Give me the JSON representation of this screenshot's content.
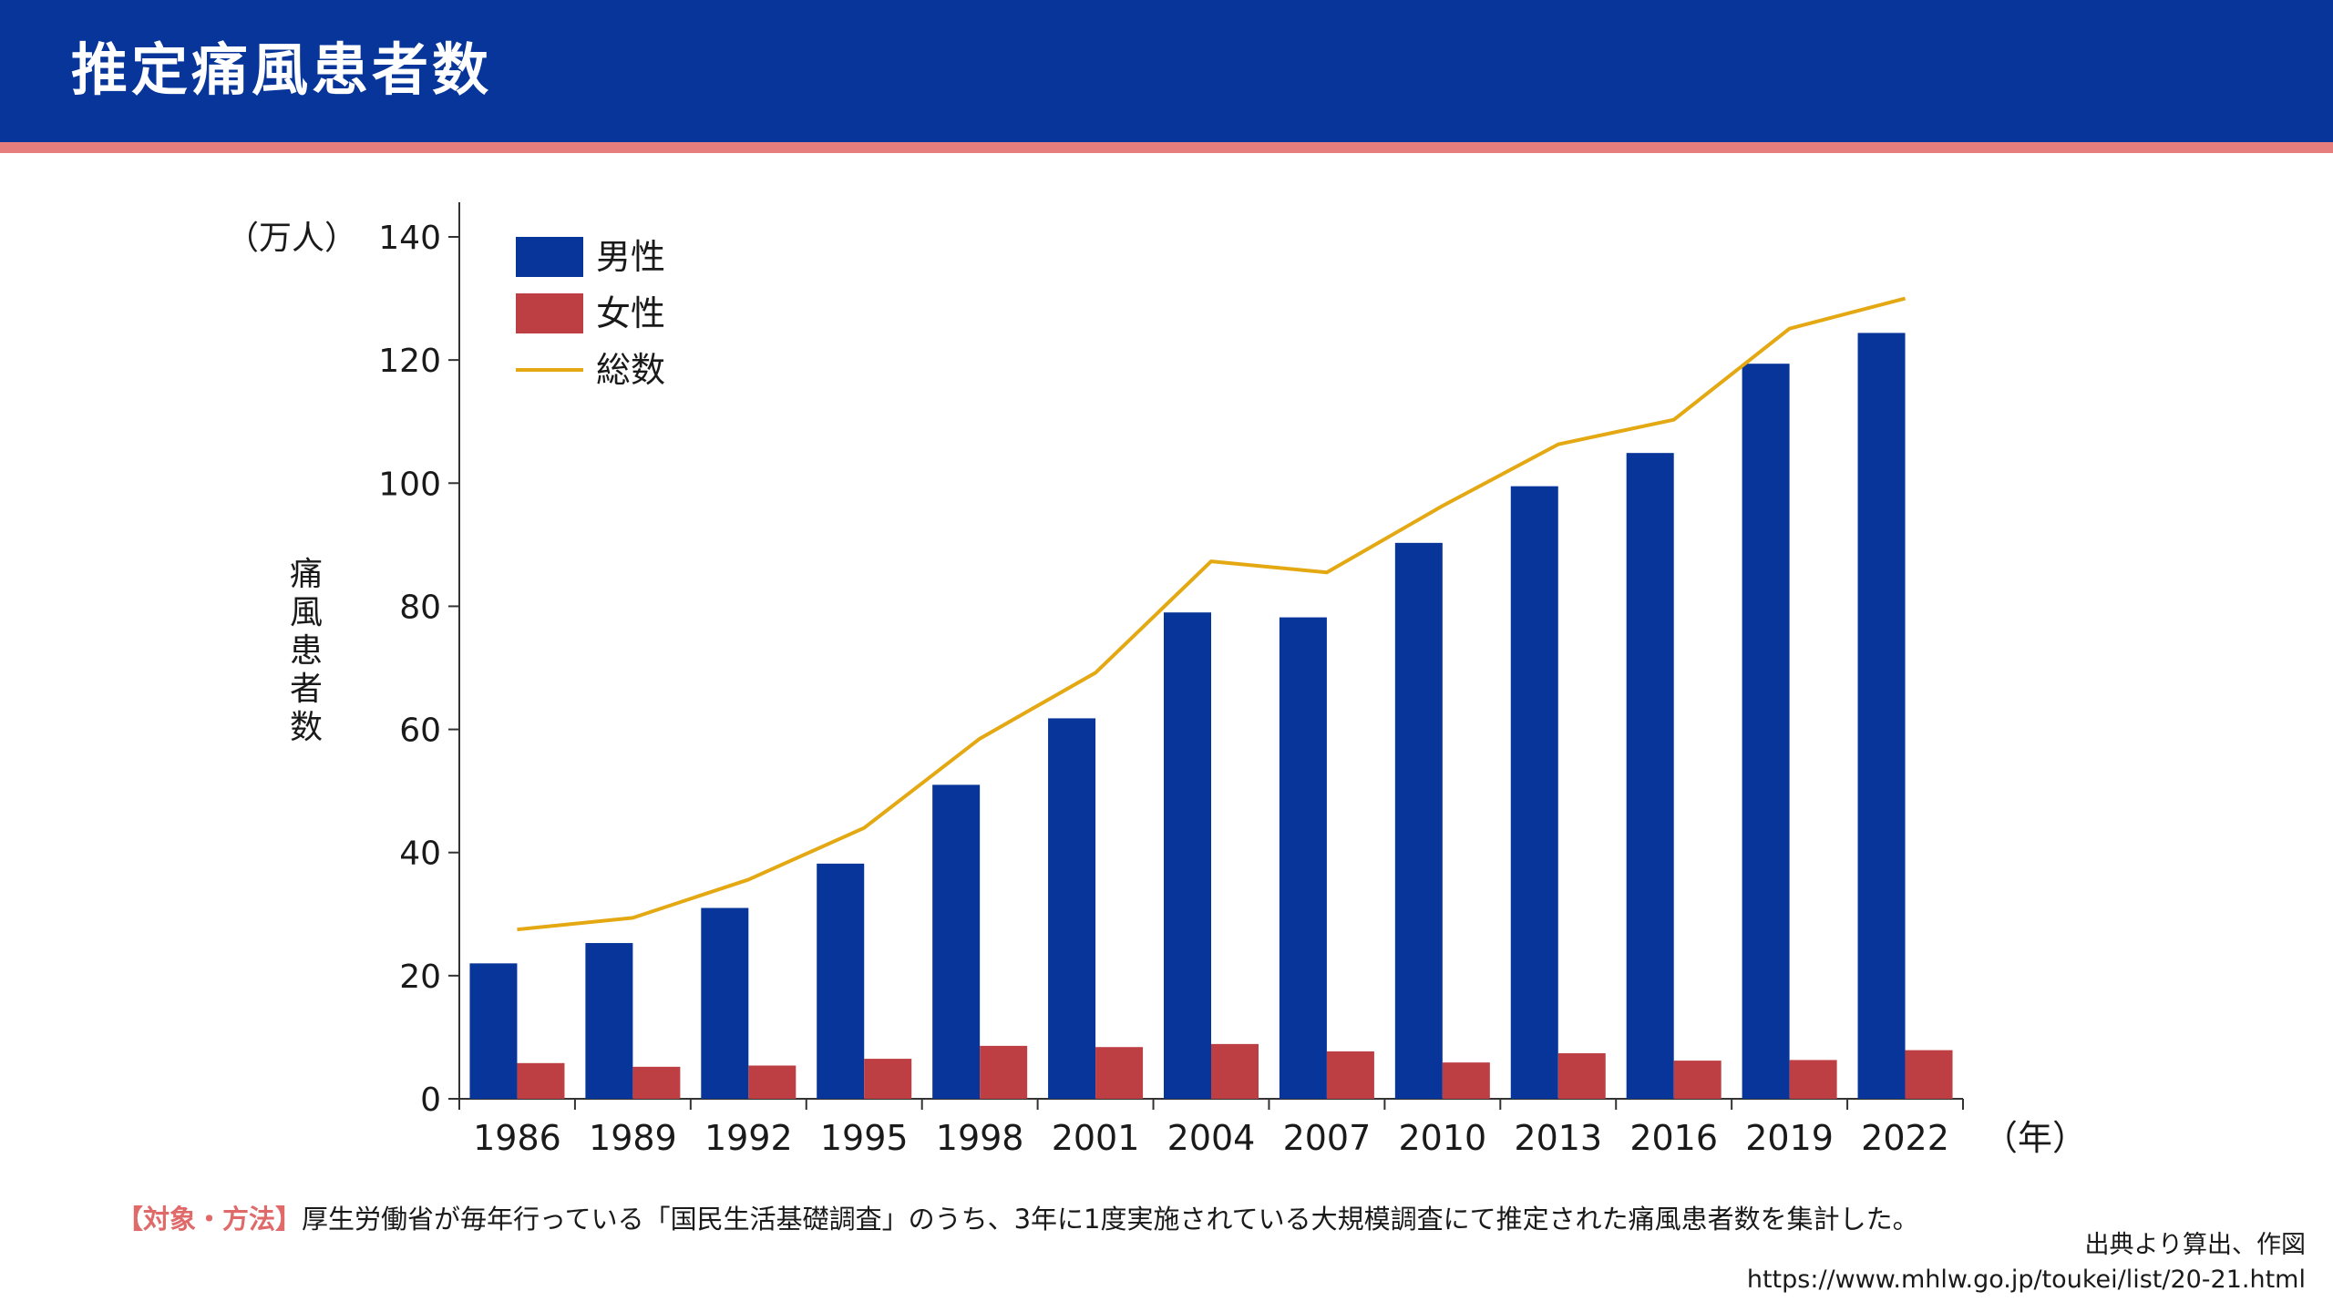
{
  "header": {
    "title": "推定痛風患者数"
  },
  "colors": {
    "header_bg": "#07359a",
    "header_stripe": "#e77e7e",
    "male": "#07359a",
    "female": "#bd3f43",
    "total": "#e4a812",
    "note_tag": "#e06a6a"
  },
  "chart_data": {
    "type": "bar",
    "title": "",
    "ylabel": "痛風患者数",
    "yunit": "（万人）",
    "xunit": "（年）",
    "ylim": [
      0,
      140
    ],
    "yticks": [
      0,
      20,
      40,
      60,
      80,
      100,
      120,
      140
    ],
    "legend_position": "top-left",
    "categories": [
      "1986",
      "1989",
      "1992",
      "1995",
      "1998",
      "2001",
      "2004",
      "2007",
      "2010",
      "2013",
      "2016",
      "2019",
      "2022"
    ],
    "series": [
      {
        "name": "男性",
        "type": "bar",
        "values": [
          22.0,
          25.3,
          31.0,
          38.2,
          51.0,
          61.8,
          79.0,
          78.2,
          90.3,
          99.5,
          104.9,
          119.4,
          124.4
        ]
      },
      {
        "name": "女性",
        "type": "bar",
        "values": [
          5.8,
          5.2,
          5.4,
          6.5,
          8.6,
          8.4,
          8.9,
          7.7,
          5.9,
          7.4,
          6.2,
          6.3,
          7.9
        ]
      },
      {
        "name": "総数",
        "type": "line",
        "values": [
          27.5,
          29.4,
          35.6,
          44.0,
          58.5,
          69.2,
          87.3,
          85.5,
          96.3,
          106.3,
          110.3,
          125.1,
          130.0
        ]
      }
    ]
  },
  "footer": {
    "note_tag": "【対象・方法】",
    "note_text": "厚生労働省が毎年行っている「国民生活基礎調査」のうち、3年に1度実施されている大規模調査にて推定された痛風患者数を集計した。",
    "source_line1": "出典より算出、作図",
    "source_line2": "https://www.mhlw.go.jp/toukei/list/20-21.html"
  }
}
